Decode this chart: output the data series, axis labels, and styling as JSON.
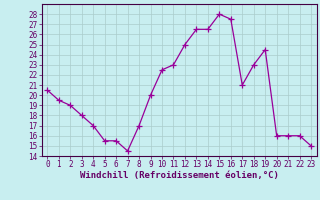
{
  "x": [
    0,
    1,
    2,
    3,
    4,
    5,
    6,
    7,
    8,
    9,
    10,
    11,
    12,
    13,
    14,
    15,
    16,
    17,
    18,
    19,
    20,
    21,
    22,
    23
  ],
  "y": [
    20.5,
    19.5,
    19.0,
    18.0,
    17.0,
    15.5,
    15.5,
    14.5,
    17.0,
    20.0,
    22.5,
    23.0,
    25.0,
    26.5,
    26.5,
    28.0,
    27.5,
    21.0,
    23.0,
    24.5,
    16.0,
    16.0,
    16.0,
    15.0
  ],
  "line_color": "#990099",
  "marker": "+",
  "marker_size": 4,
  "linewidth": 0.9,
  "bg_color": "#c8eef0",
  "grid_color": "#aacccc",
  "xlabel": "Windchill (Refroidissement éolien,°C)",
  "xlabel_fontsize": 6.5,
  "tick_fontsize": 5.5,
  "ylim": [
    14,
    29
  ],
  "xlim": [
    -0.5,
    23.5
  ],
  "yticks": [
    14,
    15,
    16,
    17,
    18,
    19,
    20,
    21,
    22,
    23,
    24,
    25,
    26,
    27,
    28
  ],
  "xticks": [
    0,
    1,
    2,
    3,
    4,
    5,
    6,
    7,
    8,
    9,
    10,
    11,
    12,
    13,
    14,
    15,
    16,
    17,
    18,
    19,
    20,
    21,
    22,
    23
  ]
}
